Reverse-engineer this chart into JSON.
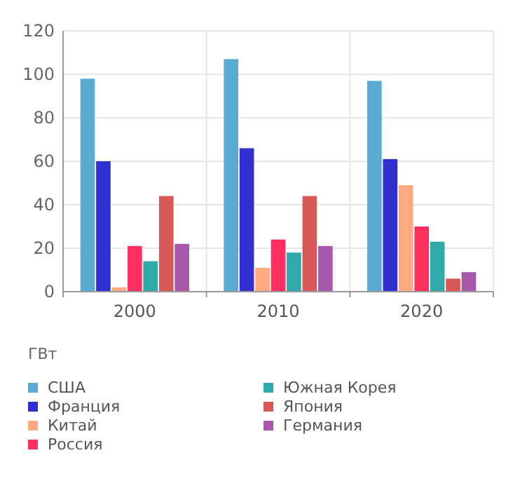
{
  "chart_data": {
    "type": "bar",
    "ylabel": "ГВт",
    "categories": [
      "2000",
      "2010",
      "2020"
    ],
    "series": [
      {
        "name": "США",
        "color": "#5aaad4",
        "values": [
          98,
          107,
          97
        ]
      },
      {
        "name": "Франция",
        "color": "#3030d0",
        "values": [
          60,
          66,
          61
        ]
      },
      {
        "name": "Китай",
        "color": "#ffaa80",
        "values": [
          2,
          11,
          49
        ]
      },
      {
        "name": "Россия",
        "color": "#ff3060",
        "values": [
          21,
          24,
          30
        ]
      },
      {
        "name": "Южная Корея",
        "color": "#30aaa8",
        "values": [
          14,
          18,
          23
        ]
      },
      {
        "name": "Япония",
        "color": "#d85858",
        "values": [
          44,
          44,
          6
        ]
      },
      {
        "name": "Германия",
        "color": "#a858a8",
        "values": [
          22,
          21,
          9
        ]
      }
    ],
    "ylim": [
      0,
      120
    ],
    "yticks": [
      0,
      20,
      40,
      60,
      80,
      100,
      120
    ],
    "grid": true,
    "legend": "bottom"
  }
}
